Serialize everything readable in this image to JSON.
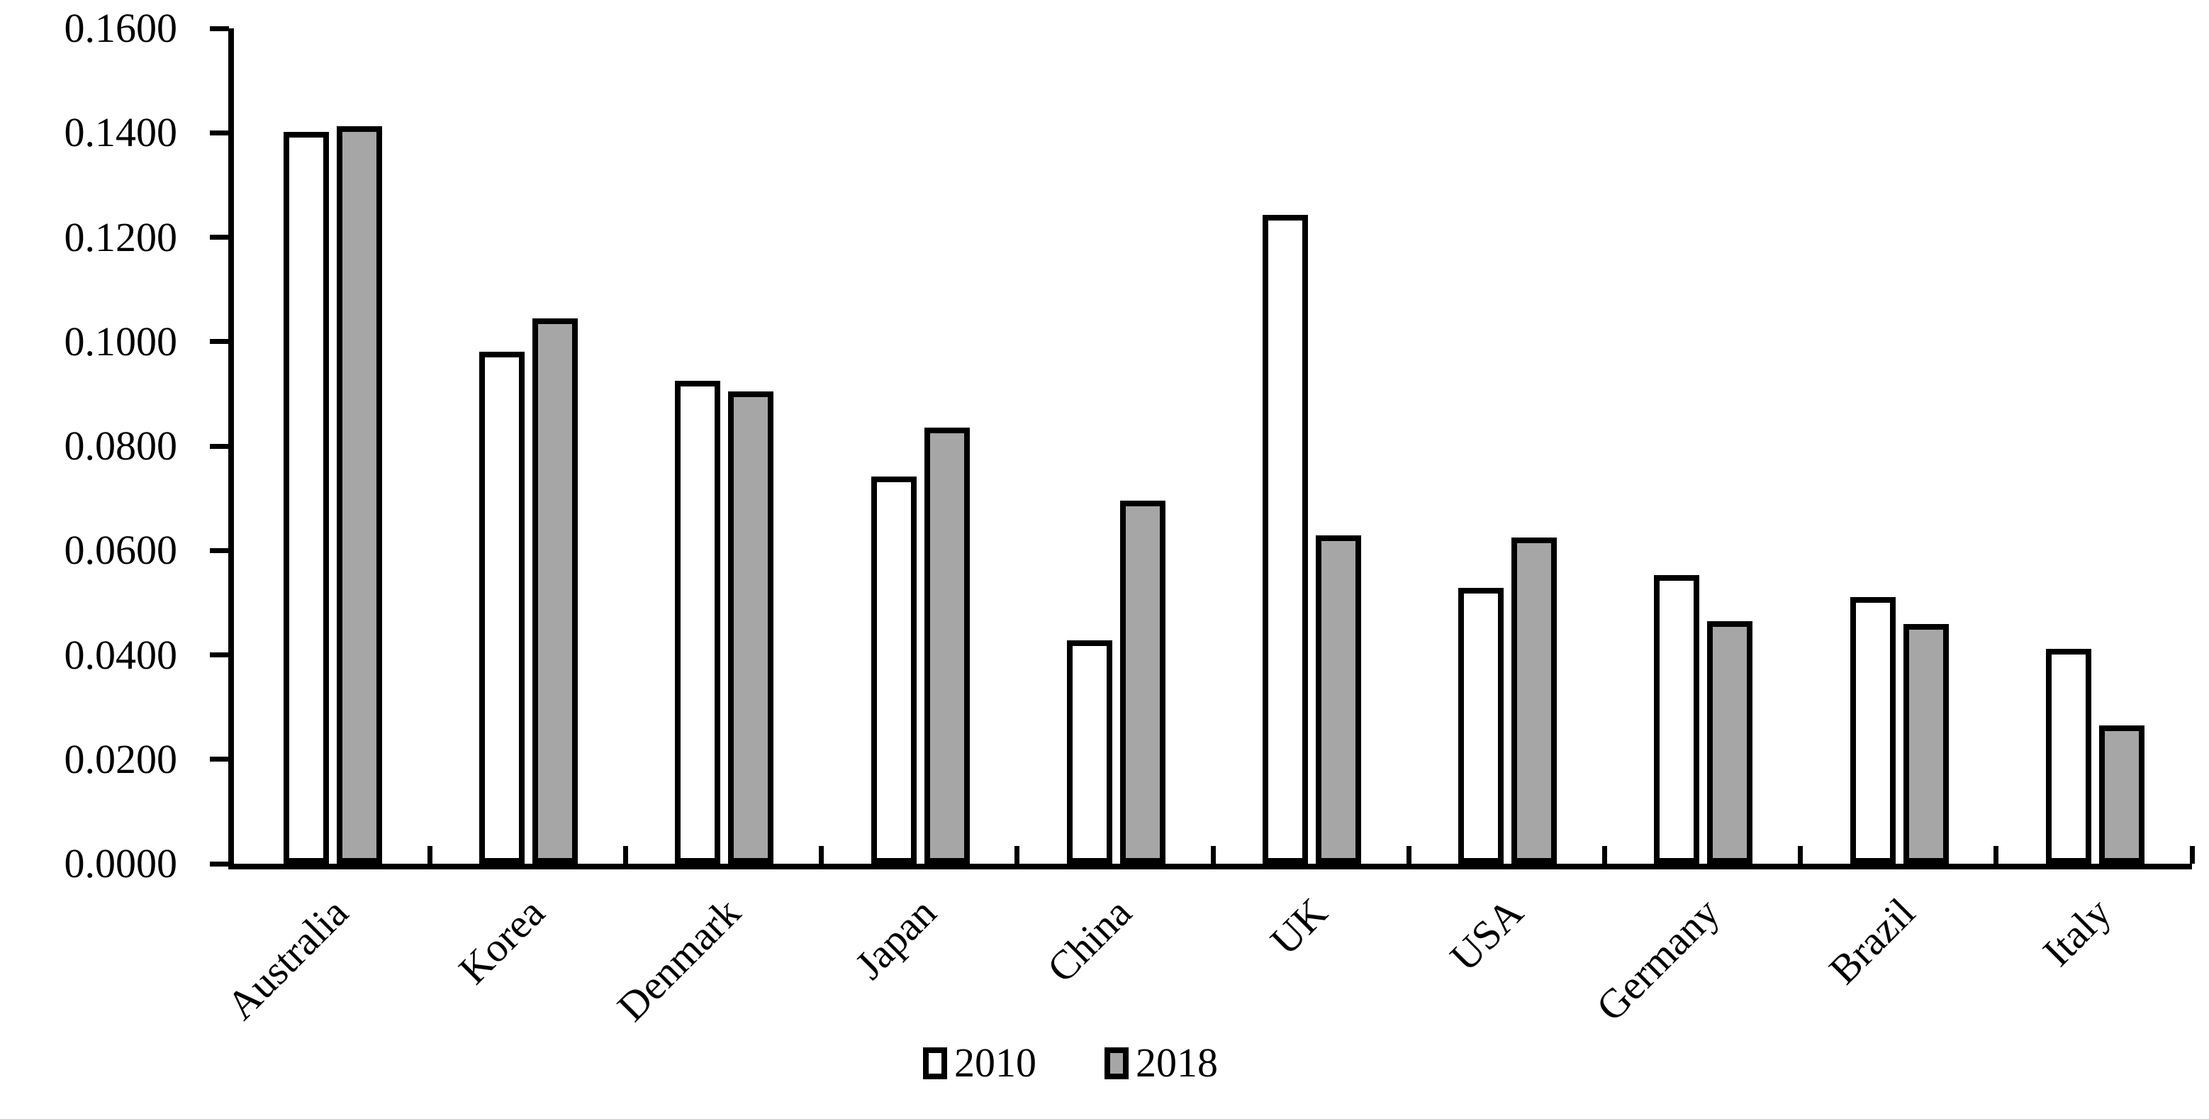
{
  "chart_data": {
    "type": "bar",
    "title": "",
    "xlabel": "",
    "ylabel": "",
    "categories": [
      "Australia",
      "Korea",
      "Denmark",
      "Japan",
      "China",
      "UK",
      "USA",
      "Germany",
      "Brazil",
      "Italy"
    ],
    "series": [
      {
        "name": "2010",
        "color": "#ffffff",
        "values": [
          0.1402,
          0.098,
          0.0925,
          0.0741,
          0.0428,
          0.1243,
          0.0529,
          0.0553,
          0.0511,
          0.0411
        ]
      },
      {
        "name": "2018",
        "color": "#a6a6a6",
        "values": [
          0.1412,
          0.1045,
          0.0905,
          0.0835,
          0.0696,
          0.0629,
          0.0625,
          0.0465,
          0.0459,
          0.0265
        ]
      }
    ],
    "ylim": [
      0,
      0.16
    ],
    "y_tick_labels": [
      "0.0000",
      "0.0200",
      "0.0400",
      "0.0600",
      "0.0800",
      "0.1000",
      "0.1200",
      "0.1400",
      "0.1600"
    ],
    "grid": "off",
    "legend_position": "bottom-center",
    "outline_color": "#000000",
    "background_color": "#ffffff"
  }
}
